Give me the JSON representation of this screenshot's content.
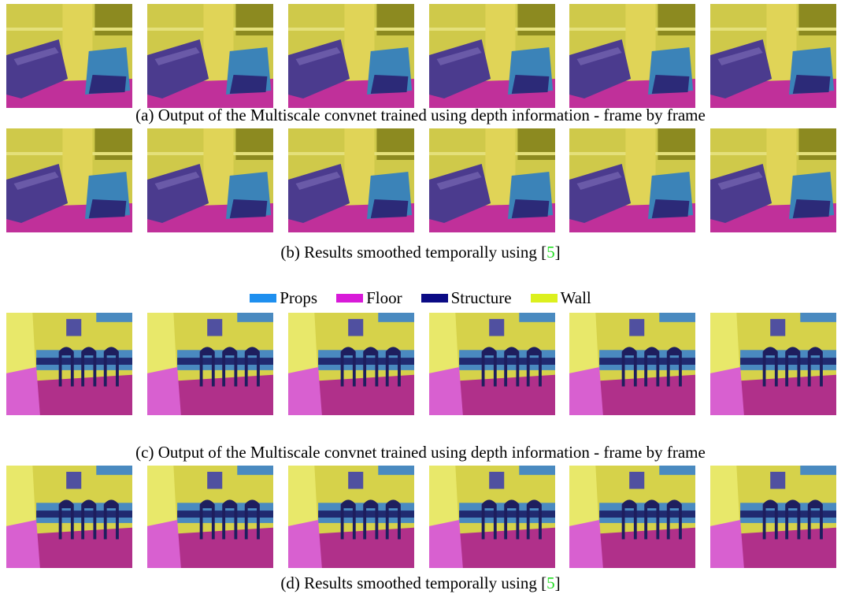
{
  "captions": [
    {
      "prefix": "(a) Output of the Multiscale convnet trained using depth information - frame by frame"
    },
    {
      "prefix": "(b) Results smoothed temporally using [",
      "citation": "5",
      "suffix": "]"
    },
    {
      "prefix": "(c) Output of the Multiscale convnet trained using depth information - frame by frame"
    },
    {
      "prefix": "(d) Results smoothed temporally using [",
      "citation": "5",
      "suffix": "]"
    }
  ],
  "legend": [
    {
      "name": "Props",
      "color": "#1e8fef"
    },
    {
      "name": "Floor",
      "color": "#d81ad8"
    },
    {
      "name": "Structure",
      "color": "#0b0b85"
    },
    {
      "name": "Wall",
      "color": "#dcf01e"
    }
  ]
}
